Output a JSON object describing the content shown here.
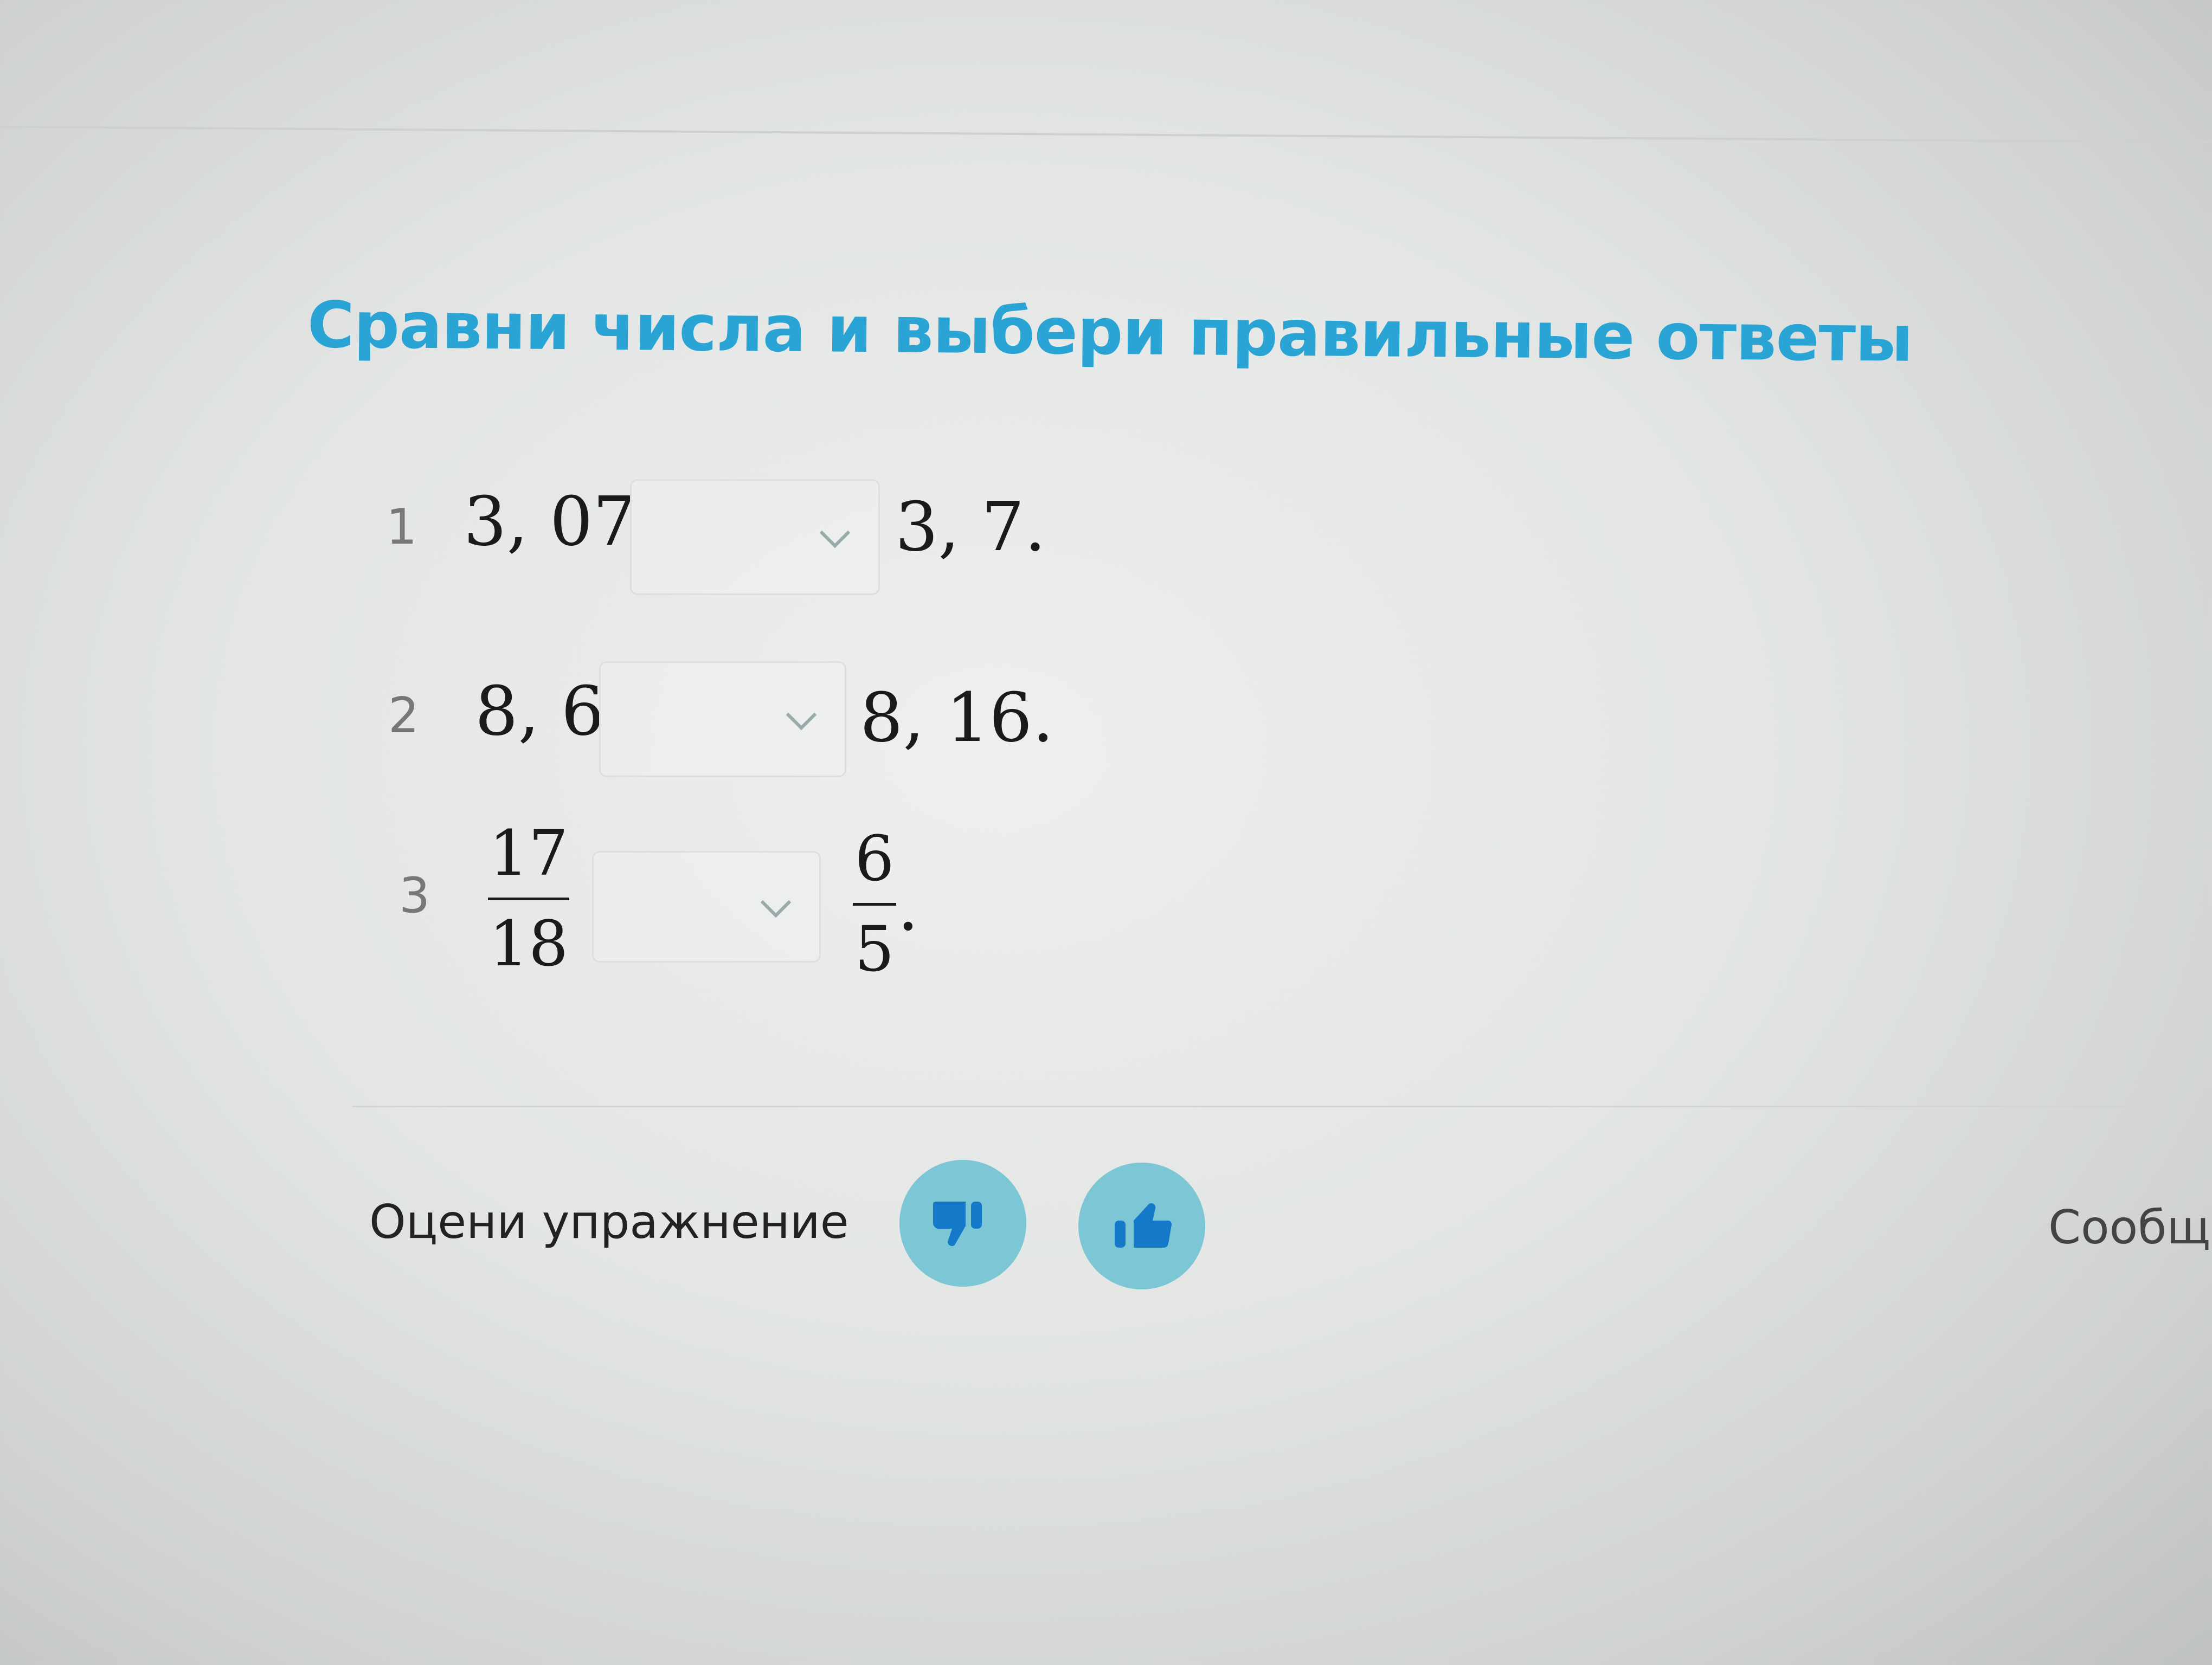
{
  "exercise": {
    "title": "Сравни числа и выбери правильные ответы",
    "items": [
      {
        "number": "1",
        "left": "3, 07",
        "selected": "",
        "right": "3, 7."
      },
      {
        "number": "2",
        "left": "8, 6",
        "selected": "",
        "right": "8, 16."
      },
      {
        "number": "3",
        "left": {
          "numerator": "17",
          "denominator": "18"
        },
        "selected": "",
        "right": {
          "numerator": "6",
          "denominator": "5",
          "suffix": "."
        }
      }
    ]
  },
  "footer": {
    "rate_label": "Оцени упражнение",
    "dislike_icon": "thumbs-down-icon",
    "like_icon": "thumbs-up-icon",
    "report_label": "Сообщи"
  },
  "colors": {
    "accent": "#2aa4d5",
    "button_bg": "#7cc6d6",
    "icon": "#1479c9"
  }
}
